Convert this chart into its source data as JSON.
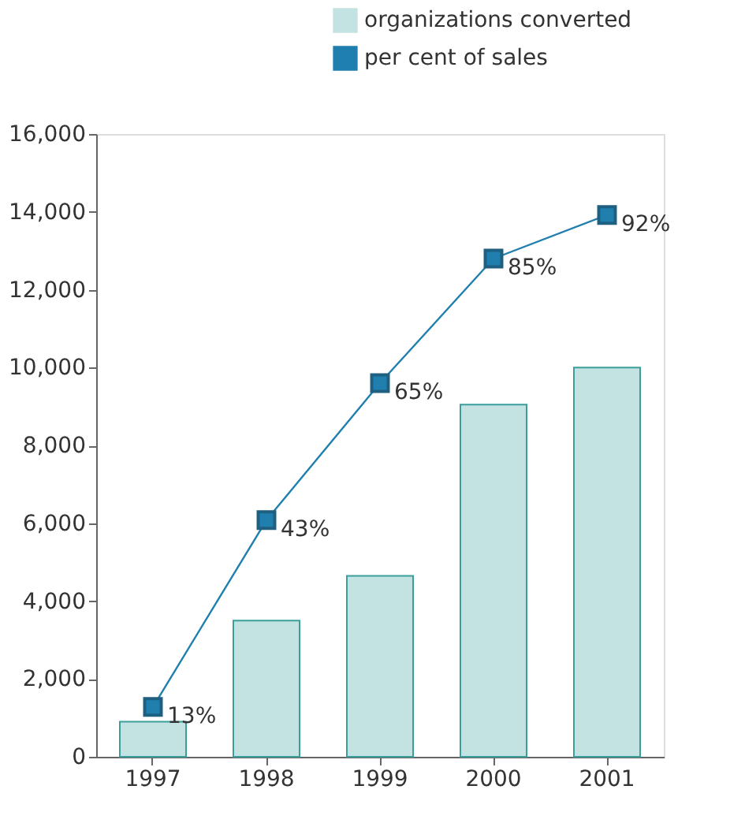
{
  "chart_data": {
    "type": "bar",
    "categories": [
      "1997",
      "1998",
      "1999",
      "2000",
      "2001"
    ],
    "series": [
      {
        "name": "organizations converted",
        "color": "#c3e2e2",
        "values": [
          900,
          3500,
          4650,
          9050,
          10000
        ]
      },
      {
        "name": "per cent of sales",
        "type": "line",
        "axis": "y2",
        "color": "#1f7fae",
        "marker": "square",
        "values": [
          13,
          43,
          65,
          85,
          92
        ],
        "value_labels": [
          "13%",
          "43%",
          "65%",
          "85%",
          "92%"
        ]
      }
    ],
    "ylim": [
      0,
      16000
    ],
    "yticks": [
      {
        "value": 0,
        "label": "0"
      },
      {
        "value": 2000,
        "label": "2,000"
      },
      {
        "value": 4000,
        "label": "4,000"
      },
      {
        "value": 6000,
        "label": "6,000"
      },
      {
        "value": 8000,
        "label": "8,000"
      },
      {
        "value": 10000,
        "label": "10,000"
      },
      {
        "value": 12000,
        "label": "12,000"
      },
      {
        "value": 14000,
        "label": "14,000"
      },
      {
        "value": 16000,
        "label": "16,000"
      }
    ],
    "y2lim": [
      5,
      105
    ],
    "grid": false,
    "legend": "top right"
  }
}
